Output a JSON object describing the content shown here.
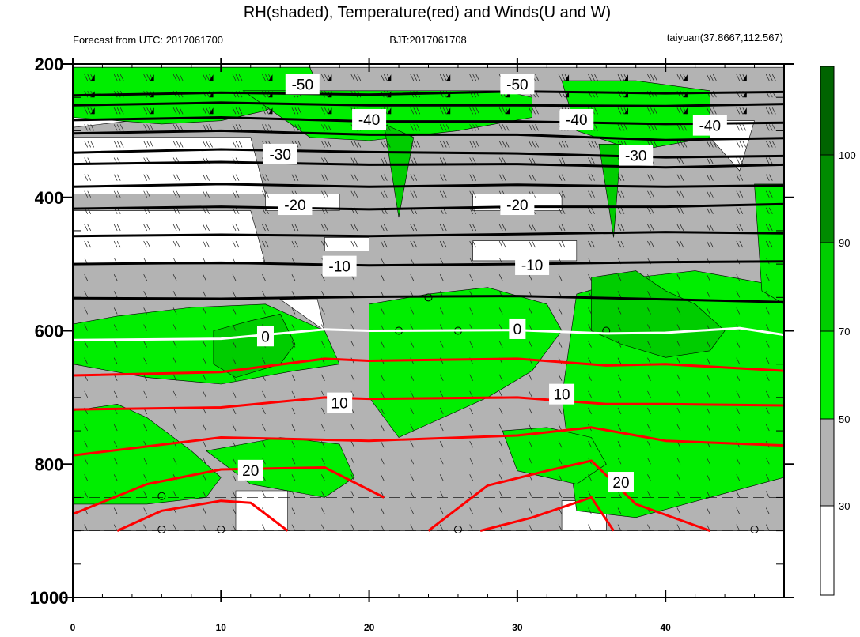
{
  "chart_data": {
    "type": "contour",
    "title": "RH(shaded), Temperature(red) and Winds(U and W)",
    "header_left": "Forecast from UTC: 2017061700",
    "header_center": "BJT:2017061708",
    "header_right": "taiyuan(37.8667,112.567)",
    "x_ticks": [
      "0",
      "10",
      "20",
      "30",
      "40"
    ],
    "y_ticks": [
      "200",
      "400",
      "600",
      "800",
      "1000"
    ],
    "xlim": [
      0,
      48
    ],
    "ylim": [
      1000,
      200
    ],
    "colorbar_labels": [
      "30",
      "50",
      "70",
      "90",
      "100"
    ],
    "colors": {
      "rh_lt30": "#ffffff",
      "rh_30_50": "#b3b3b3",
      "rh_50_70": "#00ee00",
      "rh_70_90": "#00cd00",
      "rh_90_100": "#008b00",
      "rh_gt100": "#006400",
      "temp_warm": "#ff0000",
      "temp_freezing": "#ffffff",
      "temp_cold": "#000000"
    },
    "temperature_contour_labels": [
      {
        "label": "-50",
        "x": 15.5,
        "p": 230
      },
      {
        "label": "-50",
        "x": 30,
        "p": 230
      },
      {
        "label": "-40",
        "x": 20,
        "p": 283
      },
      {
        "label": "-40",
        "x": 34,
        "p": 283
      },
      {
        "label": "-40",
        "x": 43,
        "p": 292
      },
      {
        "label": "-30",
        "x": 14,
        "p": 335
      },
      {
        "label": "-30",
        "x": 38,
        "p": 337
      },
      {
        "label": "-20",
        "x": 15,
        "p": 411
      },
      {
        "label": "-20",
        "x": 30,
        "p": 411
      },
      {
        "label": "-10",
        "x": 18,
        "p": 503
      },
      {
        "label": "-10",
        "x": 31,
        "p": 501
      },
      {
        "label": "0",
        "x": 13,
        "p": 608
      },
      {
        "label": "0",
        "x": 30,
        "p": 597
      },
      {
        "label": "10",
        "x": 18,
        "p": 708
      },
      {
        "label": "10",
        "x": 33,
        "p": 695
      },
      {
        "label": "20",
        "x": 12,
        "p": 809
      },
      {
        "label": "20",
        "x": 37,
        "p": 827
      }
    ],
    "isotherms": [
      {
        "level": -55,
        "x": [
          0,
          10,
          20,
          30,
          40,
          48
        ],
        "p": [
          247,
          243,
          246,
          241,
          244,
          242
        ]
      },
      {
        "level": -50,
        "x": [
          0,
          10,
          20,
          30,
          40,
          48
        ],
        "p": [
          262,
          258,
          262,
          262,
          263,
          260
        ]
      },
      {
        "level": -45,
        "x": [
          0,
          10,
          20,
          30,
          40,
          48
        ],
        "p": [
          284,
          280,
          286,
          286,
          290,
          288
        ]
      },
      {
        "level": -40,
        "x": [
          0,
          10,
          20,
          30,
          40,
          48
        ],
        "p": [
          304,
          300,
          306,
          306,
          314,
          311
        ]
      },
      {
        "level": -35,
        "x": [
          0,
          10,
          20,
          30,
          40,
          48
        ],
        "p": [
          333,
          328,
          332,
          334,
          340,
          338
        ]
      },
      {
        "level": -30,
        "x": [
          0,
          10,
          20,
          30,
          40,
          48
        ],
        "p": [
          350,
          347,
          351,
          350,
          355,
          351
        ]
      },
      {
        "level": -25,
        "x": [
          0,
          10,
          20,
          30,
          40,
          48
        ],
        "p": [
          384,
          380,
          384,
          381,
          384,
          382
        ]
      },
      {
        "level": -20,
        "x": [
          0,
          10,
          20,
          30,
          40,
          48
        ],
        "p": [
          417,
          414,
          418,
          414,
          414,
          410
        ]
      },
      {
        "level": -15,
        "x": [
          0,
          10,
          20,
          30,
          40,
          48
        ],
        "p": [
          458,
          456,
          458,
          455,
          452,
          454
        ]
      },
      {
        "level": -10,
        "x": [
          0,
          10,
          20,
          30,
          40,
          48
        ],
        "p": [
          500,
          498,
          502,
          500,
          497,
          496
        ]
      },
      {
        "level": -5,
        "x": [
          0,
          10,
          20,
          30,
          40,
          48
        ],
        "p": [
          551,
          552,
          549,
          548,
          553,
          557
        ]
      },
      {
        "level": 0,
        "x": [
          0,
          10,
          17,
          20,
          30,
          36,
          40,
          45,
          48
        ],
        "p": [
          614,
          612,
          598,
          600,
          599,
          604,
          603,
          596,
          606
        ]
      },
      {
        "level": 5,
        "x": [
          0,
          10,
          17,
          20,
          30,
          36,
          40,
          48
        ],
        "p": [
          667,
          662,
          642,
          645,
          642,
          652,
          650,
          660
        ]
      },
      {
        "level": 10,
        "x": [
          0,
          10,
          17,
          20,
          30,
          36,
          40,
          48
        ],
        "p": [
          718,
          715,
          700,
          702,
          700,
          710,
          710,
          712
        ]
      },
      {
        "level": 15,
        "x": [
          0,
          10,
          20,
          30,
          35,
          40,
          48
        ],
        "p": [
          787,
          760,
          765,
          757,
          745,
          765,
          772
        ]
      },
      {
        "level": 20,
        "x": [
          0,
          5,
          10,
          17,
          21
        ],
        "p": [
          875,
          830,
          808,
          805,
          850
        ]
      },
      {
        "level": 25,
        "x": [
          3,
          6,
          10,
          12,
          14.5
        ],
        "p": [
          900,
          870,
          855,
          858,
          900
        ]
      },
      {
        "level": 20,
        "x": [
          24,
          28,
          32,
          35,
          38,
          43
        ],
        "p": [
          900,
          832,
          810,
          795,
          860,
          900
        ]
      },
      {
        "level": 25,
        "x": [
          27.5,
          31,
          35,
          36.5
        ],
        "p": [
          900,
          880,
          850,
          900
        ]
      }
    ],
    "rh_regions": [
      {
        "level": "rh_30_50",
        "x": [
          0,
          48,
          48,
          0
        ],
        "p": [
          205,
          205,
          900,
          900
        ]
      },
      {
        "level": "rh_lt30",
        "x": [
          0,
          12,
          13,
          0
        ],
        "p": [
          310,
          310,
          395,
          395
        ]
      },
      {
        "level": "rh_lt30",
        "x": [
          13,
          18,
          18,
          13
        ],
        "p": [
          395,
          395,
          420,
          420
        ]
      },
      {
        "level": "rh_lt30",
        "x": [
          27,
          33,
          33,
          27
        ],
        "p": [
          395,
          395,
          420,
          420
        ]
      },
      {
        "level": "rh_lt30",
        "x": [
          0,
          12,
          13,
          0
        ],
        "p": [
          420,
          420,
          500,
          500
        ]
      },
      {
        "level": "rh_lt30",
        "x": [
          42,
          46,
          45
        ],
        "p": [
          285,
          285,
          360
        ]
      },
      {
        "level": "rh_lt30",
        "x": [
          0,
          4,
          0
        ],
        "p": [
          215,
          285,
          295
        ]
      },
      {
        "level": "rh_lt30",
        "x": [
          14,
          16.5,
          17
        ],
        "p": [
          553,
          552,
          600
        ]
      },
      {
        "level": "rh_lt30",
        "x": [
          17,
          20,
          20,
          17
        ],
        "p": [
          460,
          460,
          480,
          480
        ]
      },
      {
        "level": "rh_lt30",
        "x": [
          27,
          34,
          34,
          27
        ],
        "p": [
          465,
          465,
          495,
          495
        ]
      },
      {
        "level": "rh_lt30",
        "x": [
          11,
          14.5,
          14.5,
          11
        ],
        "p": [
          840,
          840,
          900,
          900
        ]
      },
      {
        "level": "rh_lt30",
        "x": [
          33,
          36,
          36,
          33
        ],
        "p": [
          855,
          855,
          900,
          900
        ]
      },
      {
        "level": "rh_50_70",
        "x": [
          0,
          16,
          16.5,
          13,
          10,
          6,
          0
        ],
        "p": [
          205,
          205,
          230,
          270,
          285,
          290,
          280
        ]
      },
      {
        "level": "rh_50_70",
        "x": [
          11.5,
          19,
          29,
          31,
          31,
          26,
          20,
          16
        ],
        "p": [
          240,
          240,
          240,
          250,
          280,
          300,
          315,
          310
        ]
      },
      {
        "level": "rh_50_70",
        "x": [
          33,
          38,
          43,
          43,
          38,
          34
        ],
        "p": [
          225,
          225,
          240,
          310,
          330,
          300
        ]
      },
      {
        "level": "rh_50_70",
        "x": [
          0,
          3,
          8,
          13,
          17,
          18,
          15,
          10,
          5,
          0
        ],
        "p": [
          590,
          578,
          565,
          560,
          600,
          650,
          660,
          680,
          670,
          650
        ]
      },
      {
        "level": "rh_50_70",
        "x": [
          20,
          24,
          28,
          32,
          33,
          31,
          28,
          24,
          22,
          20
        ],
        "p": [
          560,
          545,
          535,
          560,
          600,
          660,
          700,
          740,
          760,
          700
        ]
      },
      {
        "level": "rh_50_70",
        "x": [
          34,
          38,
          42,
          47,
          48,
          48,
          43,
          38,
          34,
          33
        ],
        "p": [
          545,
          520,
          510,
          530,
          560,
          820,
          850,
          880,
          870,
          700
        ]
      },
      {
        "level": "rh_50_70",
        "x": [
          0,
          3,
          5,
          8,
          10,
          9,
          5,
          0
        ],
        "p": [
          720,
          710,
          730,
          780,
          820,
          850,
          860,
          860
        ]
      },
      {
        "level": "rh_50_70",
        "x": [
          9,
          14,
          18,
          19,
          17,
          12
        ],
        "p": [
          780,
          760,
          770,
          820,
          850,
          830
        ]
      },
      {
        "level": "rh_50_70",
        "x": [
          29,
          32,
          35,
          36,
          34,
          30
        ],
        "p": [
          750,
          745,
          760,
          800,
          830,
          810
        ]
      },
      {
        "level": "rh_50_70",
        "x": [
          46,
          48,
          48,
          46.5
        ],
        "p": [
          380,
          380,
          560,
          540
        ]
      },
      {
        "level": "rh_70_90",
        "x": [
          9.5,
          12,
          14,
          15,
          14,
          11,
          9.5
        ],
        "p": [
          600,
          585,
          575,
          620,
          650,
          670,
          650
        ]
      },
      {
        "level": "rh_70_90",
        "x": [
          35,
          38,
          40,
          42,
          44,
          43,
          40,
          37,
          35
        ],
        "p": [
          520,
          510,
          540,
          560,
          600,
          630,
          640,
          620,
          600
        ]
      },
      {
        "level": "rh_70_90",
        "x": [
          35.5,
          37,
          36.5
        ],
        "p": [
          320,
          320,
          460
        ]
      },
      {
        "level": "rh_70_90",
        "x": [
          21,
          23,
          22
        ],
        "p": [
          290,
          310,
          430
        ]
      }
    ]
  }
}
